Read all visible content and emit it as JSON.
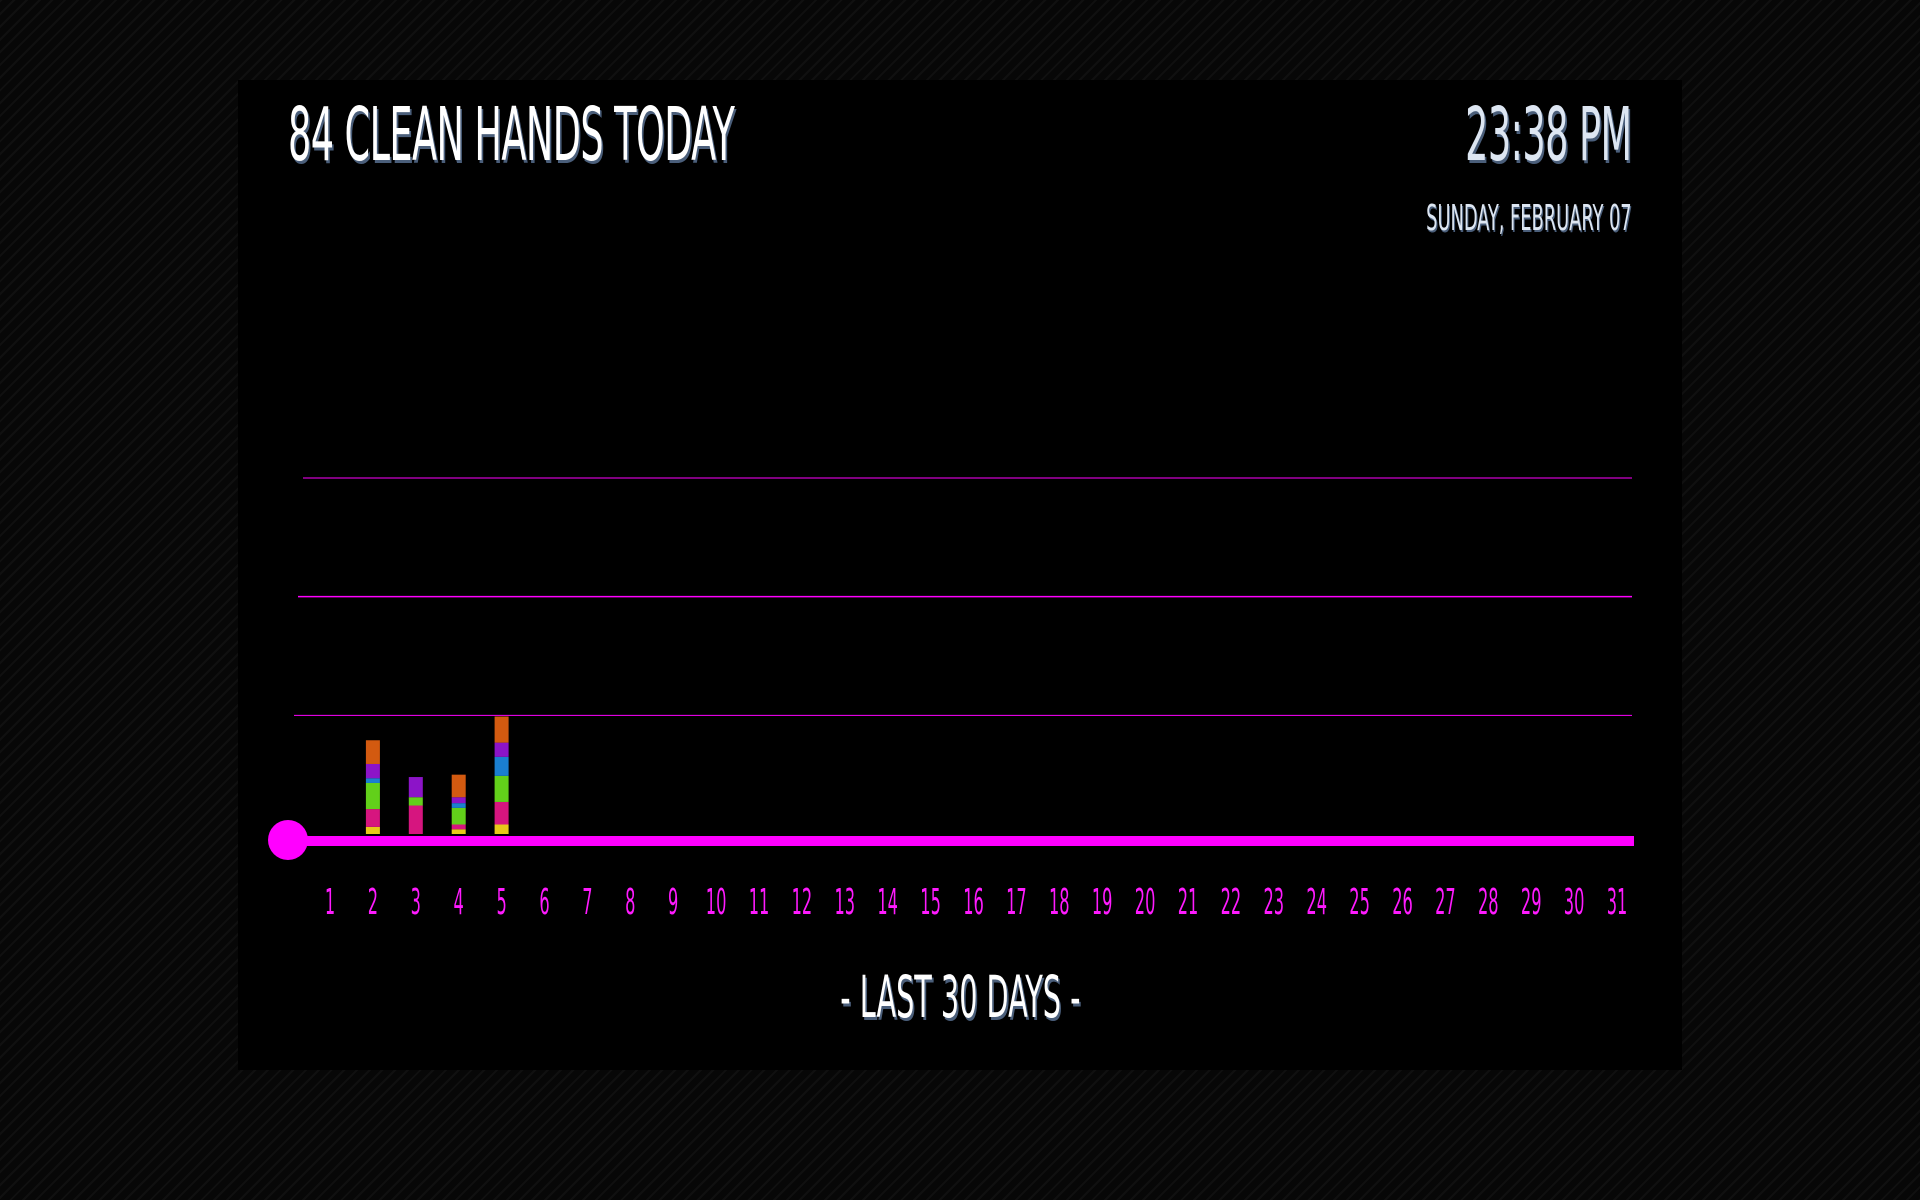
{
  "header": {
    "headline": "84 CLEAN HANDS TODAY",
    "time": "23:38 PM",
    "date": "SUNDAY, FEBRUARY 07"
  },
  "footer": {
    "caption": "- LAST 30 DAYS -"
  },
  "colors": {
    "axis": "#ff00ff",
    "gridline": "#ff00ff",
    "yellow": "#e8c81a",
    "pink": "#d6157f",
    "green": "#62d01a",
    "blue": "#1a7fd0",
    "purple": "#8c14c8",
    "orange": "#d35a10"
  },
  "chart_data": {
    "type": "bar",
    "stacked": true,
    "title": "84 CLEAN HANDS TODAY",
    "xlabel": "- LAST 30 DAYS -",
    "ylabel": "",
    "categories": [
      "1",
      "2",
      "3",
      "4",
      "5",
      "6",
      "7",
      "8",
      "9",
      "10",
      "11",
      "12",
      "13",
      "14",
      "15",
      "16",
      "17",
      "18",
      "19",
      "20",
      "21",
      "22",
      "23",
      "24",
      "25",
      "26",
      "27",
      "28",
      "29",
      "30",
      "31"
    ],
    "ylim": [
      0,
      300
    ],
    "gridlines": [
      100,
      200,
      300
    ],
    "series": [
      {
        "name": "yellow",
        "color": "#e8c81a",
        "values": [
          0,
          6,
          0,
          4,
          8,
          0,
          0,
          0,
          0,
          0,
          0,
          0,
          0,
          0,
          0,
          0,
          0,
          0,
          0,
          0,
          0,
          0,
          0,
          0,
          0,
          0,
          0,
          0,
          0,
          0,
          0
        ]
      },
      {
        "name": "pink",
        "color": "#d6157f",
        "values": [
          0,
          15,
          24,
          4,
          19,
          0,
          0,
          0,
          0,
          0,
          0,
          0,
          0,
          0,
          0,
          0,
          0,
          0,
          0,
          0,
          0,
          0,
          0,
          0,
          0,
          0,
          0,
          0,
          0,
          0,
          0
        ]
      },
      {
        "name": "green",
        "color": "#62d01a",
        "values": [
          0,
          22,
          7,
          14,
          22,
          0,
          0,
          0,
          0,
          0,
          0,
          0,
          0,
          0,
          0,
          0,
          0,
          0,
          0,
          0,
          0,
          0,
          0,
          0,
          0,
          0,
          0,
          0,
          0,
          0,
          0
        ]
      },
      {
        "name": "blue",
        "color": "#1a7fd0",
        "values": [
          0,
          4,
          0,
          4,
          16,
          0,
          0,
          0,
          0,
          0,
          0,
          0,
          0,
          0,
          0,
          0,
          0,
          0,
          0,
          0,
          0,
          0,
          0,
          0,
          0,
          0,
          0,
          0,
          0,
          0,
          0
        ]
      },
      {
        "name": "purple",
        "color": "#8c14c8",
        "values": [
          0,
          12,
          17,
          5,
          12,
          0,
          0,
          0,
          0,
          0,
          0,
          0,
          0,
          0,
          0,
          0,
          0,
          0,
          0,
          0,
          0,
          0,
          0,
          0,
          0,
          0,
          0,
          0,
          0,
          0,
          0
        ]
      },
      {
        "name": "orange",
        "color": "#d35a10",
        "values": [
          0,
          20,
          0,
          19,
          22,
          0,
          0,
          0,
          0,
          0,
          0,
          0,
          0,
          0,
          0,
          0,
          0,
          0,
          0,
          0,
          0,
          0,
          0,
          0,
          0,
          0,
          0,
          0,
          0,
          0,
          0
        ]
      }
    ]
  }
}
